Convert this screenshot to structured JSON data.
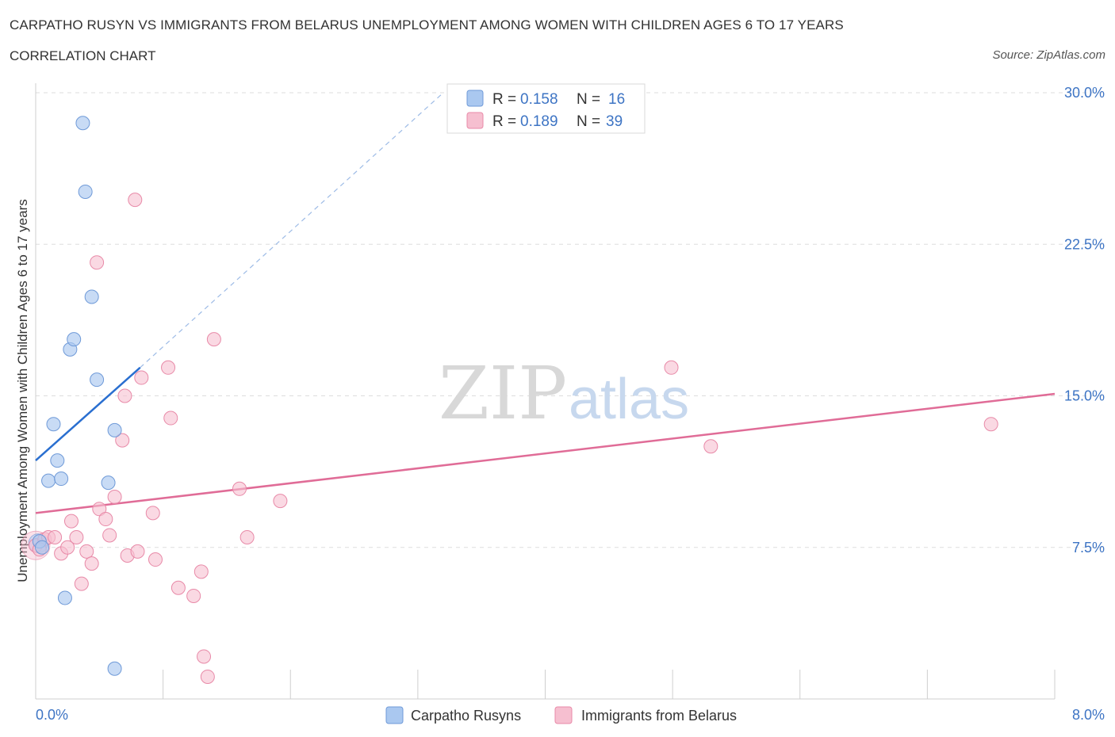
{
  "header": {
    "title": "CARPATHO RUSYN VS IMMIGRANTS FROM BELARUS UNEMPLOYMENT AMONG WOMEN WITH CHILDREN AGES 6 TO 17 YEARS",
    "subtitle": "CORRELATION CHART",
    "source": "Source: ZipAtlas.com"
  },
  "legend_top": {
    "series1": {
      "r_label": "R =",
      "r_value": "0.158",
      "n_label": "N =",
      "n_value": "16"
    },
    "series2": {
      "r_label": "R =",
      "r_value": "0.189",
      "n_label": "N =",
      "n_value": "39"
    }
  },
  "watermark": {
    "zip": "ZIP",
    "atlas": "atlas"
  },
  "colors": {
    "blue_fill": "#aac8f0",
    "blue_stroke": "#6f9ad8",
    "blue_line": "#2a6fd0",
    "pink_fill": "#f6bfd0",
    "pink_stroke": "#e88aa8",
    "pink_line": "#e06c97",
    "tick_text": "#3d74c4",
    "grid": "#dddddd"
  },
  "chart_data": {
    "type": "scatter",
    "title": "CARPATHO RUSYN VS IMMIGRANTS FROM BELARUS UNEMPLOYMENT AMONG WOMEN WITH CHILDREN AGES 6 TO 17 YEARS",
    "xlabel": "",
    "ylabel": "Unemployment Among Women with Children Ages 6 to 17 years",
    "xlim": [
      0,
      8
    ],
    "ylim": [
      0,
      30
    ],
    "x_tick_labels": [
      "0.0%",
      "8.0%"
    ],
    "y_ticks": [
      7.5,
      15.0,
      22.5,
      30.0
    ],
    "y_tick_labels": [
      "7.5%",
      "15.0%",
      "22.5%",
      "30.0%"
    ],
    "legend_labels": [
      "Carpatho Rusyns",
      "Immigrants from Belarus"
    ],
    "series": [
      {
        "name": "Carpatho Rusyns",
        "color": "blue",
        "points": [
          [
            0.03,
            7.8
          ],
          [
            0.05,
            7.5
          ],
          [
            0.1,
            10.8
          ],
          [
            0.14,
            13.6
          ],
          [
            0.17,
            11.8
          ],
          [
            0.2,
            10.9
          ],
          [
            0.23,
            5.0
          ],
          [
            0.27,
            17.3
          ],
          [
            0.3,
            17.8
          ],
          [
            0.37,
            28.5
          ],
          [
            0.39,
            25.1
          ],
          [
            0.44,
            19.9
          ],
          [
            0.48,
            15.8
          ],
          [
            0.57,
            10.7
          ],
          [
            0.62,
            13.3
          ],
          [
            0.62,
            1.5
          ]
        ],
        "trend": {
          "x1": 0.0,
          "y1": 11.8,
          "x2": 0.82,
          "y2": 16.4,
          "dashed_to": [
            3.2,
            30.0
          ]
        }
      },
      {
        "name": "Immigrants from Belarus",
        "color": "pink",
        "points": [
          [
            0.0,
            7.6
          ],
          [
            0.07,
            7.9
          ],
          [
            0.1,
            8.0
          ],
          [
            0.15,
            8.0
          ],
          [
            0.2,
            7.2
          ],
          [
            0.25,
            7.5
          ],
          [
            0.28,
            8.8
          ],
          [
            0.32,
            8.0
          ],
          [
            0.36,
            5.7
          ],
          [
            0.4,
            7.3
          ],
          [
            0.44,
            6.7
          ],
          [
            0.5,
            9.4
          ],
          [
            0.55,
            8.9
          ],
          [
            0.58,
            8.1
          ],
          [
            0.62,
            10.0
          ],
          [
            0.68,
            12.8
          ],
          [
            0.7,
            15.0
          ],
          [
            0.72,
            7.1
          ],
          [
            0.78,
            24.7
          ],
          [
            0.8,
            7.3
          ],
          [
            0.83,
            15.9
          ],
          [
            0.92,
            9.2
          ],
          [
            0.94,
            6.9
          ],
          [
            1.04,
            16.4
          ],
          [
            1.06,
            13.9
          ],
          [
            1.12,
            5.5
          ],
          [
            1.24,
            5.1
          ],
          [
            1.3,
            6.3
          ],
          [
            1.32,
            2.1
          ],
          [
            1.35,
            1.1
          ],
          [
            1.4,
            17.8
          ],
          [
            1.6,
            10.4
          ],
          [
            1.66,
            8.0
          ],
          [
            1.92,
            9.8
          ],
          [
            4.99,
            16.4
          ],
          [
            5.3,
            12.5
          ],
          [
            7.5,
            13.6
          ],
          [
            0.48,
            21.6
          ],
          [
            0.03,
            7.4
          ]
        ],
        "trend": {
          "x1": 0.0,
          "y1": 9.2,
          "x2": 8.0,
          "y2": 15.1
        }
      }
    ]
  }
}
